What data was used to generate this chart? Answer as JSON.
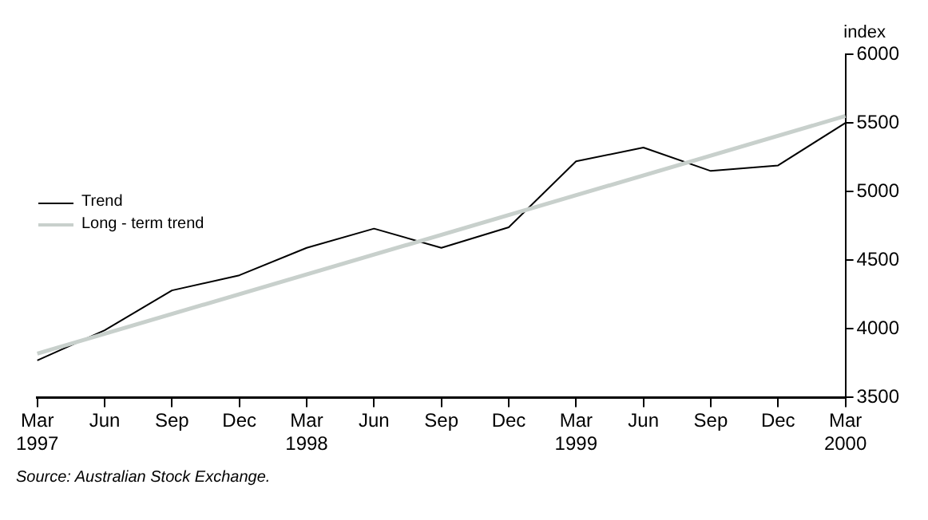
{
  "chart_data": {
    "type": "line",
    "ylabel": "index",
    "categories": [
      "Mar 1997",
      "Jun",
      "Sep",
      "Dec",
      "Mar 1998",
      "Jun",
      "Sep",
      "Dec",
      "Mar 1999",
      "Jun",
      "Sep",
      "Dec",
      "Mar 2000"
    ],
    "series": [
      {
        "name": "Trend",
        "color": "#000000",
        "values": [
          3770,
          3990,
          4280,
          4390,
          4590,
          4730,
          4590,
          4740,
          5220,
          5320,
          5150,
          5190,
          5500
        ]
      },
      {
        "name": "Long - term trend",
        "color": "#c8d0cc",
        "values": [
          3820,
          null,
          null,
          null,
          null,
          null,
          null,
          null,
          null,
          null,
          null,
          null,
          5550
        ]
      }
    ],
    "ylim": [
      3500,
      6000
    ],
    "yticks": [
      3500,
      4000,
      4500,
      5000,
      5500,
      6000
    ],
    "grid": false,
    "legend": "left",
    "marker": "none",
    "line_style": "solid",
    "annotations": [
      "Source: Australian Stock Exchange."
    ]
  }
}
